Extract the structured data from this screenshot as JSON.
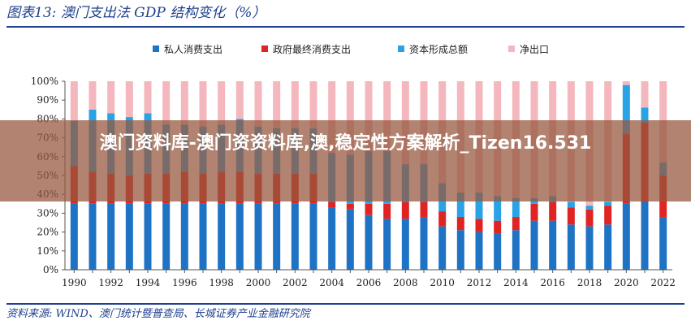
{
  "figure": {
    "title": "图表13: 澳门支出法 GDP 结构变化（%）",
    "source": "资料来源: WIND、澳门统计暨普查局、长城证券产业金融研究院"
  },
  "overlay": {
    "text": "澳门资料库-澳门资资料库,澳,稳定性方案解析_Tizen16.531"
  },
  "colors": {
    "private_consumption": "#1f73c4",
    "government_consumption": "#e02424",
    "capital_formation": "#29a3e6",
    "net_exports": "#f4b7bd",
    "rule": "#1f3f8f"
  },
  "chart_data": {
    "type": "bar",
    "stacked": true,
    "title": "澳门支出法 GDP 结构变化（%）",
    "xlabel": "",
    "ylabel": "",
    "ylim": [
      0,
      100
    ],
    "yticks": [
      "0%",
      "10%",
      "20%",
      "30%",
      "40%",
      "50%",
      "60%",
      "70%",
      "80%",
      "90%",
      "100%"
    ],
    "x_tick_labels": [
      "1990",
      "1992",
      "1994",
      "1996",
      "1998",
      "2000",
      "2002",
      "2004",
      "2006",
      "2008",
      "2010",
      "2012",
      "2014",
      "2016",
      "2018",
      "2020",
      "2022"
    ],
    "categories": [
      "1990",
      "1991",
      "1992",
      "1993",
      "1994",
      "1995",
      "1996",
      "1997",
      "1998",
      "1999",
      "2000",
      "2001",
      "2002",
      "2003",
      "2004",
      "2005",
      "2006",
      "2007",
      "2008",
      "2009",
      "2010",
      "2011",
      "2012",
      "2013",
      "2014",
      "2015",
      "2016",
      "2017",
      "2018",
      "2019",
      "2020",
      "2021",
      "2022"
    ],
    "legend_position": "top",
    "grid": false,
    "series": [
      {
        "name": "私人消费支出",
        "color_key": "private_consumption",
        "values": [
          35,
          35,
          35,
          35,
          35,
          35,
          35,
          35,
          35,
          35,
          35,
          35,
          35,
          35,
          33,
          32,
          29,
          27,
          27,
          28,
          23,
          21,
          20,
          19,
          21,
          26,
          26,
          24,
          23,
          24,
          35,
          36,
          28
        ]
      },
      {
        "name": "政府最终消费支出",
        "color_key": "government_consumption",
        "values": [
          20,
          17,
          16,
          15,
          16,
          16,
          17,
          16,
          17,
          17,
          16,
          16,
          16,
          16,
          3,
          3,
          6,
          8,
          9,
          8,
          8,
          7,
          7,
          7,
          7,
          9,
          10,
          9,
          9,
          10,
          37,
          42,
          22
        ]
      },
      {
        "name": "资本形成总额",
        "color_key": "capital_formation",
        "values": [
          24,
          33,
          32,
          31,
          32,
          26,
          25,
          25,
          25,
          28,
          25,
          24,
          24,
          24,
          26,
          26,
          28,
          28,
          20,
          20,
          15,
          13,
          14,
          13,
          10,
          3,
          3,
          3,
          2,
          2,
          26,
          8,
          7
        ]
      },
      {
        "name": "净出口",
        "color_key": "net_exports",
        "values": [
          21,
          15,
          17,
          19,
          17,
          23,
          23,
          24,
          23,
          20,
          24,
          25,
          25,
          25,
          38,
          39,
          37,
          37,
          44,
          44,
          54,
          59,
          59,
          61,
          62,
          62,
          61,
          64,
          66,
          64,
          2,
          14,
          43
        ]
      }
    ]
  }
}
